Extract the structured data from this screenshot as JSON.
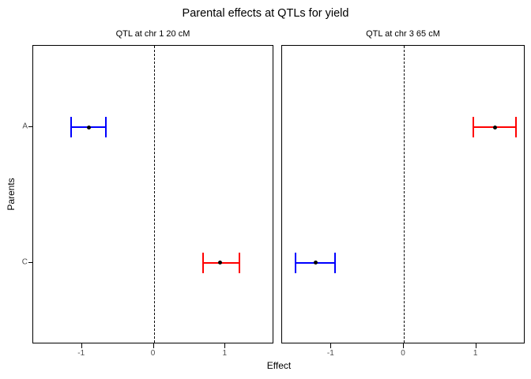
{
  "chart_data": {
    "type": "scatter",
    "subtype": "dot-with-horizontal-errorbars",
    "title": "Parental effects at QTLs for yield",
    "xlabel": "Effect",
    "ylabel": "Parents",
    "xlim": [
      -1.68,
      1.68
    ],
    "x_ticks": [
      -1,
      0,
      1
    ],
    "y_categories": [
      "A",
      "C"
    ],
    "reference_line_x": 0,
    "reference_line_style": "dashed",
    "grid": "off",
    "colors": {
      "negative_effect": "#0000FF",
      "positive_effect": "#FF0000",
      "point": "#000000"
    },
    "facets": [
      {
        "label": "QTL at chr 1 20 cM",
        "points": [
          {
            "parent": "A",
            "effect": -0.9,
            "lo": -1.15,
            "hi": -0.67,
            "color": "#0000FF"
          },
          {
            "parent": "C",
            "effect": 0.93,
            "lo": 0.69,
            "hi": 1.19,
            "color": "#FF0000"
          }
        ]
      },
      {
        "label": "QTL at chr 3 65 cM",
        "points": [
          {
            "parent": "A",
            "effect": 1.26,
            "lo": 0.96,
            "hi": 1.55,
            "color": "#FF0000"
          },
          {
            "parent": "C",
            "effect": -1.22,
            "lo": -1.5,
            "hi": -0.95,
            "color": "#0000FF"
          }
        ]
      }
    ]
  }
}
